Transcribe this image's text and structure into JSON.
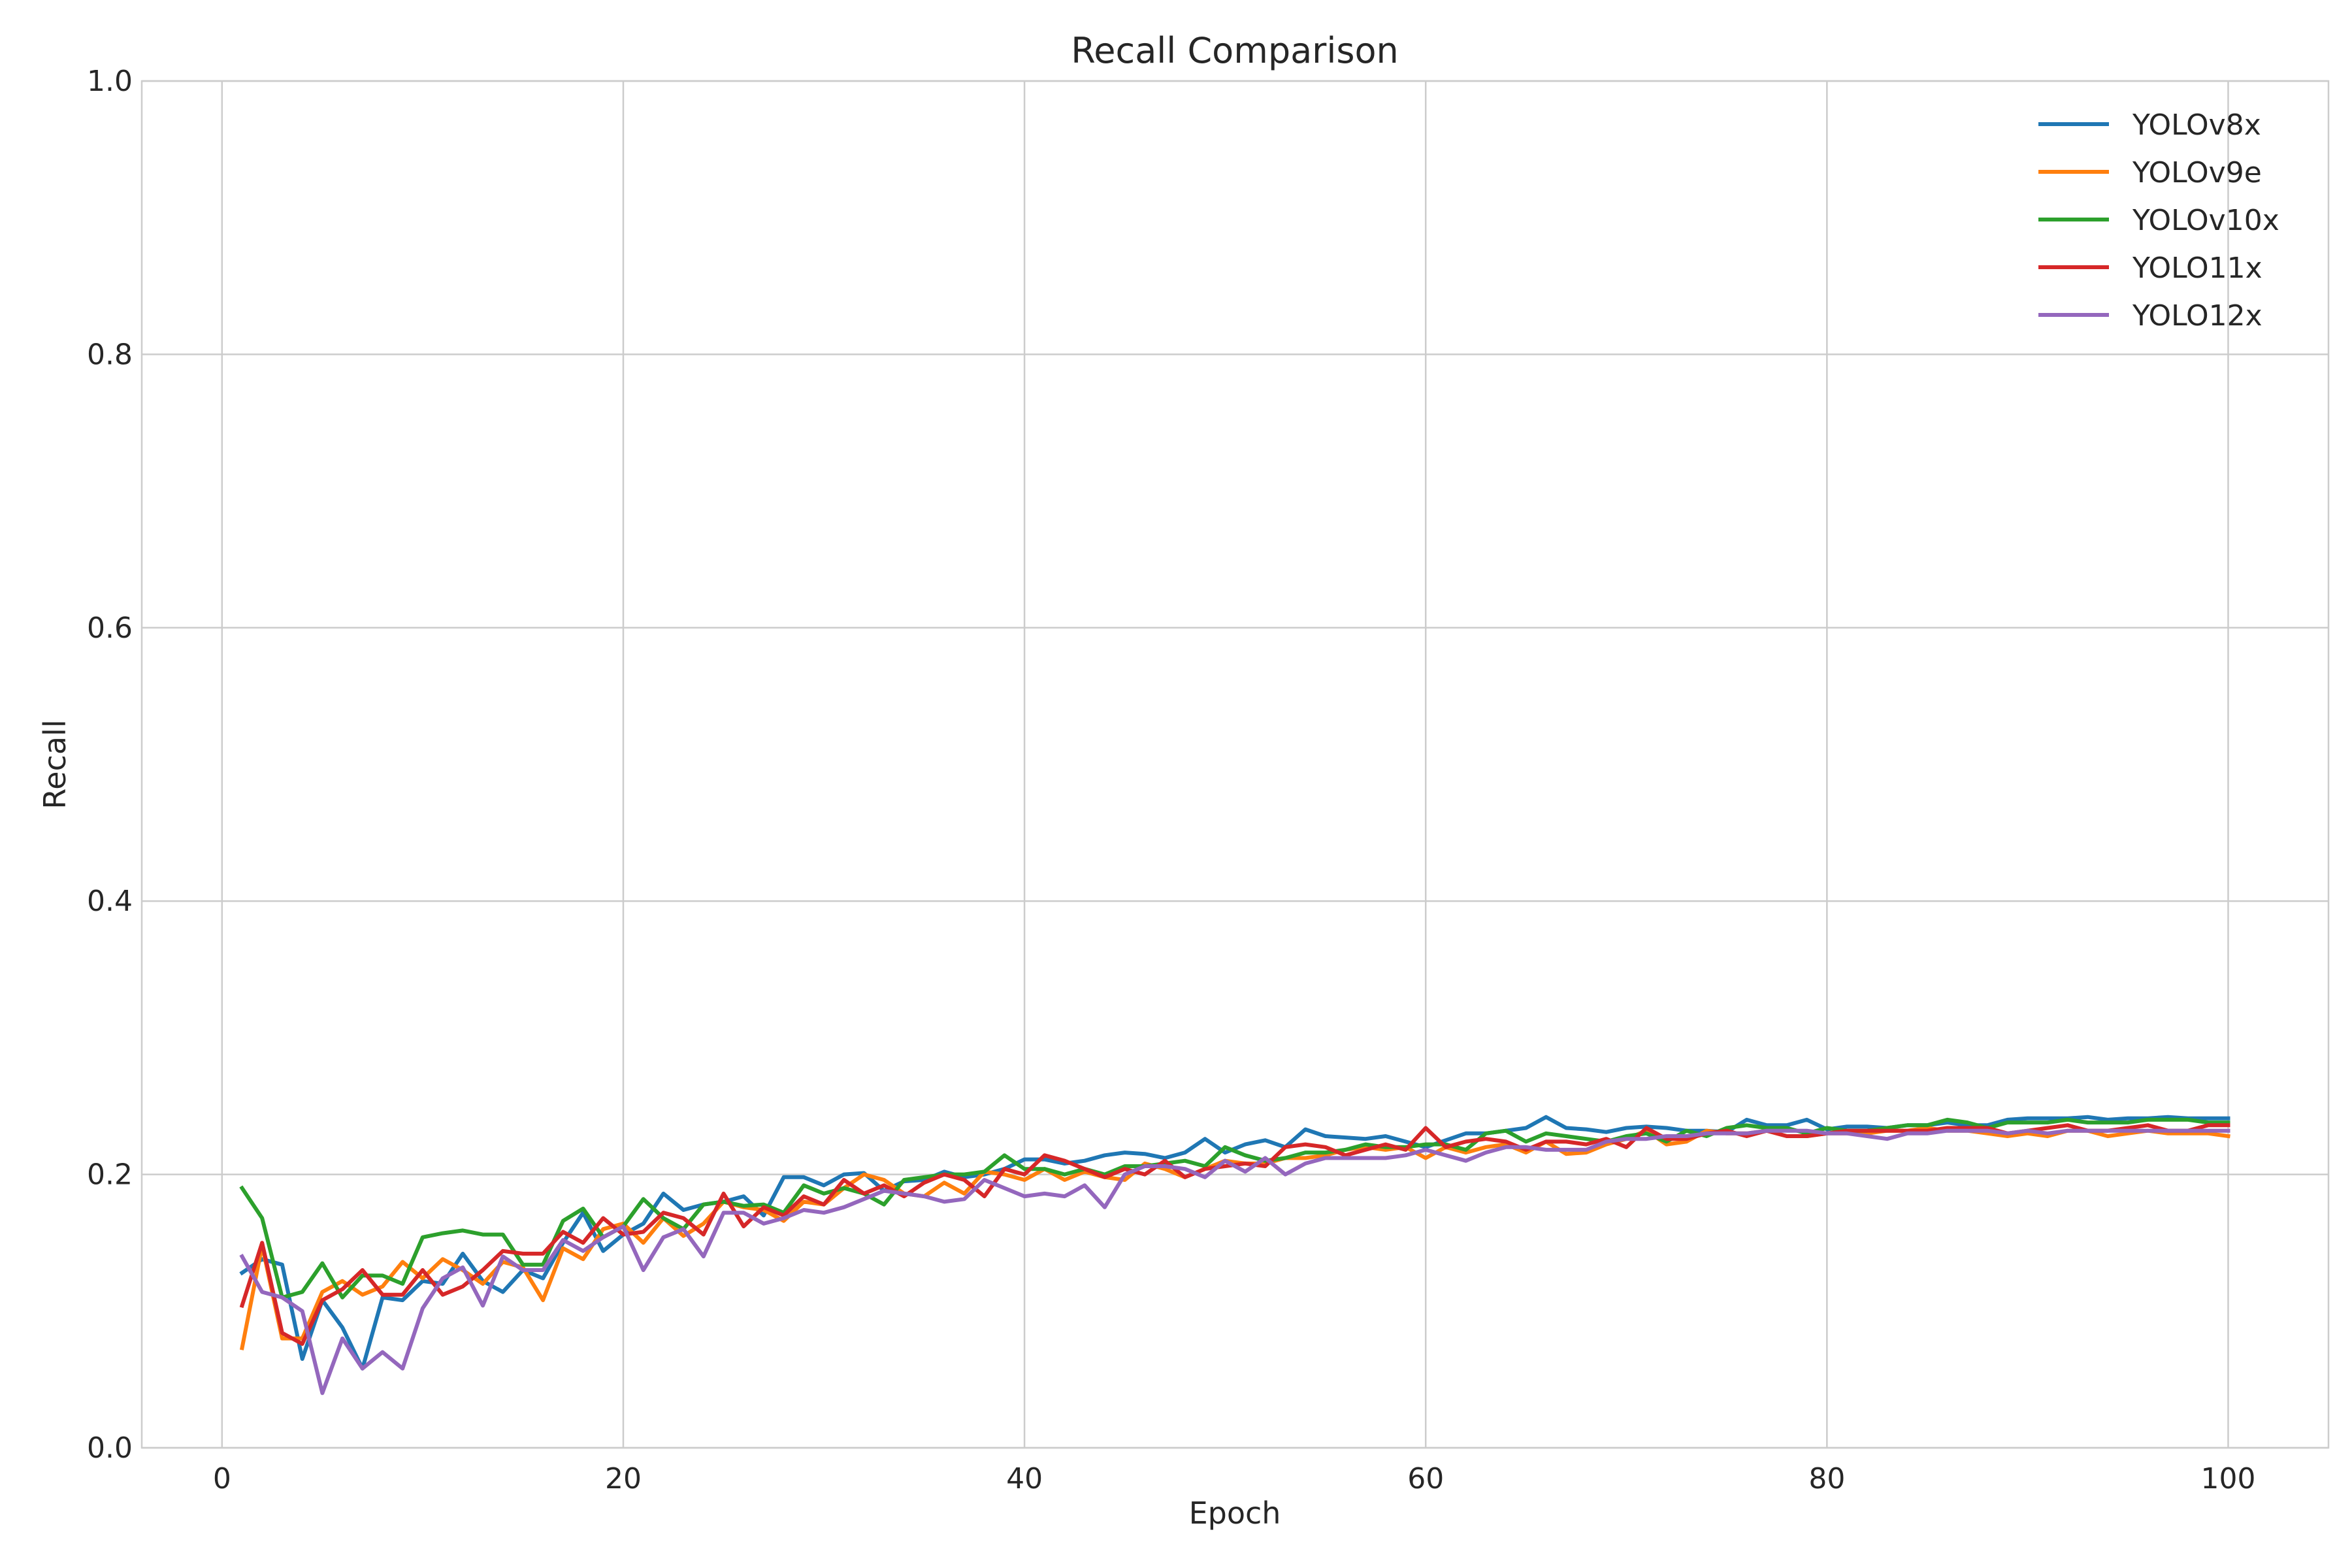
{
  "chart_data": {
    "type": "line",
    "title": "Recall Comparison",
    "xlabel": "Epoch",
    "ylabel": "Recall",
    "xlim": [
      -4,
      105
    ],
    "ylim": [
      0.0,
      1.0
    ],
    "xticks": [
      0,
      20,
      40,
      60,
      80,
      100
    ],
    "yticks": [
      0.0,
      0.2,
      0.4,
      0.6,
      0.8,
      1.0
    ],
    "xtick_labels": [
      "0",
      "20",
      "40",
      "60",
      "80",
      "100"
    ],
    "ytick_labels": [
      "0.0",
      "0.2",
      "0.4",
      "0.6",
      "0.8",
      "1.0"
    ],
    "grid": true,
    "legend_position": "top-right",
    "x": [
      1,
      2,
      3,
      4,
      5,
      6,
      7,
      8,
      9,
      10,
      11,
      12,
      13,
      14,
      15,
      16,
      17,
      18,
      19,
      20,
      21,
      22,
      23,
      24,
      25,
      26,
      27,
      28,
      29,
      30,
      31,
      32,
      33,
      34,
      35,
      36,
      37,
      38,
      39,
      40,
      41,
      42,
      43,
      44,
      45,
      46,
      47,
      48,
      49,
      50,
      51,
      52,
      53,
      54,
      55,
      56,
      57,
      58,
      59,
      60,
      61,
      62,
      63,
      64,
      65,
      66,
      67,
      68,
      69,
      70,
      71,
      72,
      73,
      74,
      75,
      76,
      77,
      78,
      79,
      80,
      81,
      82,
      83,
      84,
      85,
      86,
      87,
      88,
      89,
      90,
      91,
      92,
      93,
      94,
      95,
      96,
      97,
      98,
      99,
      100
    ],
    "series": [
      {
        "name": "YOLOv8x",
        "color": "#1f77b4",
        "values": [
          0.128,
          0.138,
          0.134,
          0.065,
          0.108,
          0.088,
          0.058,
          0.11,
          0.108,
          0.122,
          0.12,
          0.142,
          0.122,
          0.114,
          0.13,
          0.124,
          0.15,
          0.172,
          0.144,
          0.156,
          0.164,
          0.186,
          0.174,
          0.178,
          0.18,
          0.184,
          0.17,
          0.198,
          0.198,
          0.192,
          0.2,
          0.201,
          0.188,
          0.195,
          0.196,
          0.202,
          0.198,
          0.2,
          0.204,
          0.211,
          0.211,
          0.208,
          0.21,
          0.214,
          0.216,
          0.215,
          0.212,
          0.216,
          0.226,
          0.216,
          0.222,
          0.225,
          0.22,
          0.233,
          0.228,
          0.227,
          0.226,
          0.228,
          0.224,
          0.22,
          0.225,
          0.23,
          0.23,
          0.232,
          0.234,
          0.242,
          0.234,
          0.233,
          0.231,
          0.234,
          0.235,
          0.234,
          0.232,
          0.232,
          0.231,
          0.24,
          0.236,
          0.236,
          0.24,
          0.233,
          0.235,
          0.235,
          0.234,
          0.236,
          0.236,
          0.238,
          0.236,
          0.236,
          0.24,
          0.241,
          0.241,
          0.241,
          0.242,
          0.24,
          0.241,
          0.241,
          0.242,
          0.241,
          0.241,
          0.241
        ]
      },
      {
        "name": "YOLOv9e",
        "color": "#ff7f0e",
        "values": [
          0.073,
          0.148,
          0.08,
          0.08,
          0.114,
          0.122,
          0.112,
          0.118,
          0.136,
          0.124,
          0.138,
          0.13,
          0.12,
          0.136,
          0.132,
          0.108,
          0.146,
          0.138,
          0.16,
          0.164,
          0.15,
          0.168,
          0.155,
          0.164,
          0.18,
          0.176,
          0.174,
          0.166,
          0.18,
          0.178,
          0.19,
          0.2,
          0.196,
          0.186,
          0.184,
          0.194,
          0.186,
          0.202,
          0.2,
          0.196,
          0.204,
          0.196,
          0.202,
          0.198,
          0.196,
          0.208,
          0.204,
          0.198,
          0.204,
          0.21,
          0.208,
          0.208,
          0.212,
          0.212,
          0.214,
          0.218,
          0.22,
          0.218,
          0.22,
          0.212,
          0.22,
          0.216,
          0.22,
          0.222,
          0.216,
          0.224,
          0.215,
          0.216,
          0.222,
          0.226,
          0.232,
          0.222,
          0.224,
          0.232,
          0.23,
          0.23,
          0.232,
          0.228,
          0.228,
          0.23,
          0.23,
          0.23,
          0.232,
          0.232,
          0.234,
          0.232,
          0.232,
          0.23,
          0.228,
          0.23,
          0.228,
          0.232,
          0.232,
          0.228,
          0.23,
          0.232,
          0.23,
          0.23,
          0.23,
          0.228
        ]
      },
      {
        "name": "YOLOv10x",
        "color": "#2ca02c",
        "values": [
          0.19,
          0.168,
          0.11,
          0.114,
          0.135,
          0.11,
          0.126,
          0.126,
          0.12,
          0.154,
          0.157,
          0.159,
          0.156,
          0.156,
          0.134,
          0.134,
          0.166,
          0.175,
          0.154,
          0.162,
          0.182,
          0.168,
          0.16,
          0.178,
          0.18,
          0.177,
          0.178,
          0.172,
          0.192,
          0.186,
          0.19,
          0.186,
          0.178,
          0.196,
          0.198,
          0.2,
          0.2,
          0.202,
          0.214,
          0.204,
          0.204,
          0.2,
          0.204,
          0.2,
          0.206,
          0.206,
          0.208,
          0.21,
          0.206,
          0.22,
          0.214,
          0.21,
          0.212,
          0.216,
          0.216,
          0.218,
          0.222,
          0.22,
          0.22,
          0.222,
          0.222,
          0.218,
          0.23,
          0.232,
          0.224,
          0.23,
          0.228,
          0.226,
          0.224,
          0.228,
          0.23,
          0.224,
          0.232,
          0.228,
          0.234,
          0.236,
          0.234,
          0.234,
          0.23,
          0.234,
          0.232,
          0.232,
          0.234,
          0.236,
          0.236,
          0.24,
          0.238,
          0.234,
          0.238,
          0.238,
          0.238,
          0.24,
          0.238,
          0.238,
          0.238,
          0.24,
          0.24,
          0.24,
          0.238,
          0.238
        ]
      },
      {
        "name": "YOLO11x",
        "color": "#d62728",
        "values": [
          0.104,
          0.15,
          0.084,
          0.076,
          0.108,
          0.116,
          0.13,
          0.112,
          0.112,
          0.13,
          0.112,
          0.118,
          0.13,
          0.144,
          0.142,
          0.142,
          0.158,
          0.15,
          0.168,
          0.156,
          0.158,
          0.172,
          0.168,
          0.156,
          0.186,
          0.162,
          0.176,
          0.17,
          0.184,
          0.178,
          0.196,
          0.186,
          0.192,
          0.184,
          0.194,
          0.2,
          0.196,
          0.184,
          0.204,
          0.2,
          0.214,
          0.21,
          0.204,
          0.198,
          0.204,
          0.2,
          0.21,
          0.198,
          0.204,
          0.206,
          0.208,
          0.206,
          0.22,
          0.222,
          0.22,
          0.214,
          0.218,
          0.222,
          0.218,
          0.234,
          0.22,
          0.224,
          0.226,
          0.224,
          0.218,
          0.224,
          0.224,
          0.222,
          0.226,
          0.22,
          0.234,
          0.226,
          0.226,
          0.23,
          0.232,
          0.228,
          0.232,
          0.228,
          0.228,
          0.23,
          0.232,
          0.232,
          0.232,
          0.232,
          0.232,
          0.234,
          0.234,
          0.234,
          0.23,
          0.232,
          0.234,
          0.236,
          0.232,
          0.232,
          0.234,
          0.236,
          0.232,
          0.232,
          0.236,
          0.236
        ]
      },
      {
        "name": "YOLO12x",
        "color": "#9467bd",
        "values": [
          0.14,
          0.114,
          0.11,
          0.1,
          0.04,
          0.08,
          0.058,
          0.07,
          0.058,
          0.102,
          0.124,
          0.132,
          0.104,
          0.14,
          0.13,
          0.13,
          0.152,
          0.144,
          0.154,
          0.162,
          0.13,
          0.154,
          0.16,
          0.14,
          0.172,
          0.172,
          0.164,
          0.168,
          0.174,
          0.172,
          0.176,
          0.182,
          0.188,
          0.186,
          0.184,
          0.18,
          0.182,
          0.196,
          0.19,
          0.184,
          0.186,
          0.184,
          0.192,
          0.176,
          0.2,
          0.206,
          0.206,
          0.204,
          0.198,
          0.21,
          0.202,
          0.212,
          0.2,
          0.208,
          0.212,
          0.212,
          0.212,
          0.212,
          0.214,
          0.218,
          0.214,
          0.21,
          0.216,
          0.22,
          0.22,
          0.218,
          0.218,
          0.218,
          0.224,
          0.226,
          0.226,
          0.228,
          0.228,
          0.23,
          0.23,
          0.23,
          0.232,
          0.232,
          0.232,
          0.23,
          0.23,
          0.228,
          0.226,
          0.23,
          0.23,
          0.232,
          0.232,
          0.232,
          0.23,
          0.232,
          0.23,
          0.232,
          0.232,
          0.232,
          0.232,
          0.232,
          0.232,
          0.232,
          0.232,
          0.232
        ]
      }
    ]
  }
}
